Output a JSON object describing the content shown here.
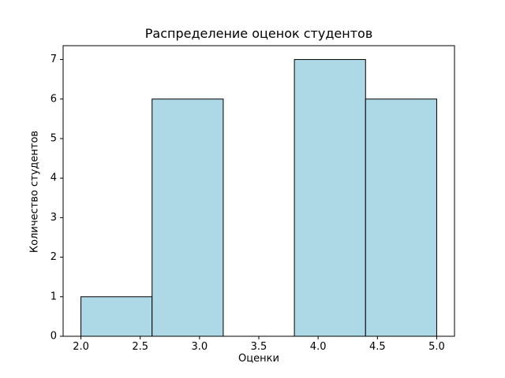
{
  "chart_data": {
    "type": "bar",
    "subtype": "histogram",
    "title": "Распределение оценок студентов",
    "xlabel": "Оценки",
    "ylabel": "Количество студентов",
    "bin_edges": [
      2.0,
      2.6,
      3.2,
      3.8,
      4.4,
      5.0
    ],
    "counts": [
      1,
      6,
      0,
      7,
      6
    ],
    "xticks": [
      2.0,
      2.5,
      3.0,
      3.5,
      4.0,
      4.5,
      5.0
    ],
    "xtick_labels": [
      "2.0",
      "2.5",
      "3.0",
      "3.5",
      "4.0",
      "4.5",
      "5.0"
    ],
    "yticks": [
      0,
      1,
      2,
      3,
      4,
      5,
      6,
      7
    ],
    "ytick_labels": [
      "0",
      "1",
      "2",
      "3",
      "4",
      "5",
      "6",
      "7"
    ],
    "xlim": [
      1.85,
      5.15
    ],
    "ylim": [
      0,
      7.35
    ],
    "bar_fill": "#ADD8E6",
    "bar_edge": "#000000",
    "background": "#ffffff",
    "grid": false,
    "legend": null
  }
}
